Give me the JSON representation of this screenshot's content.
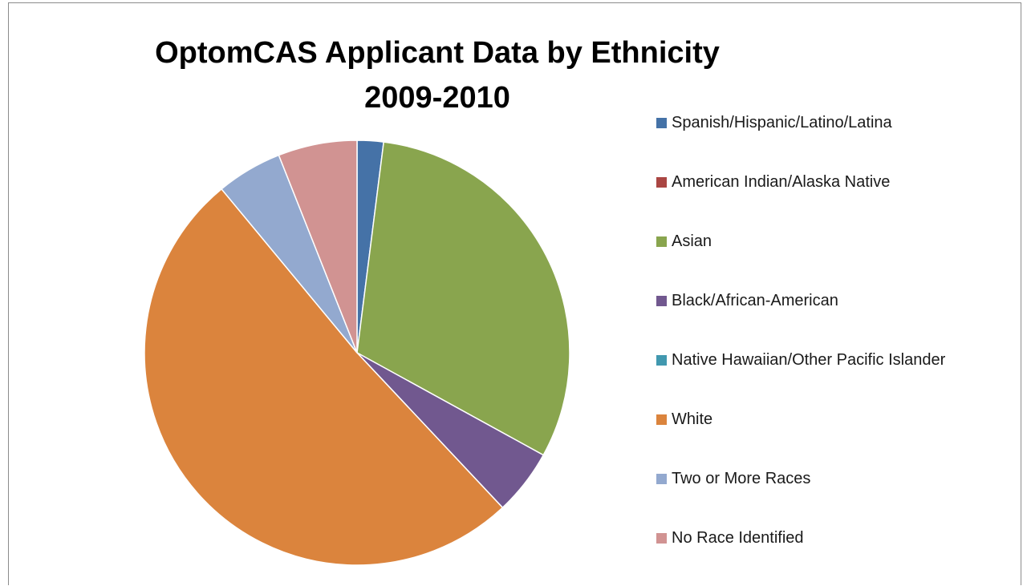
{
  "chart_data": {
    "type": "pie",
    "title": "OptomCAS Applicant Data by Ethnicity 2009-2010",
    "title_lines": [
      "OptomCAS Applicant Data by Ethnicity",
      "2009-2010"
    ],
    "legend_position": "right",
    "slices": [
      {
        "label": "Spanish/Hispanic/Latino/Latina",
        "value": 2.0,
        "color": "#4572A7"
      },
      {
        "label": "American Indian/Alaska Native",
        "value": 0.0,
        "color": "#AA4643"
      },
      {
        "label": "Asian",
        "value": 31.0,
        "color": "#89A54E"
      },
      {
        "label": "Black/African-American",
        "value": 5.0,
        "color": "#71588F"
      },
      {
        "label": "Native Hawaiian/Other Pacific Islander",
        "value": 0.0,
        "color": "#4198AF"
      },
      {
        "label": "White",
        "value": 51.0,
        "color": "#DB843D"
      },
      {
        "label": "Two or More Races",
        "value": 5.0,
        "color": "#93A9CF"
      },
      {
        "label": "No Race Identified",
        "value": 6.0,
        "color": "#D19392"
      }
    ]
  }
}
